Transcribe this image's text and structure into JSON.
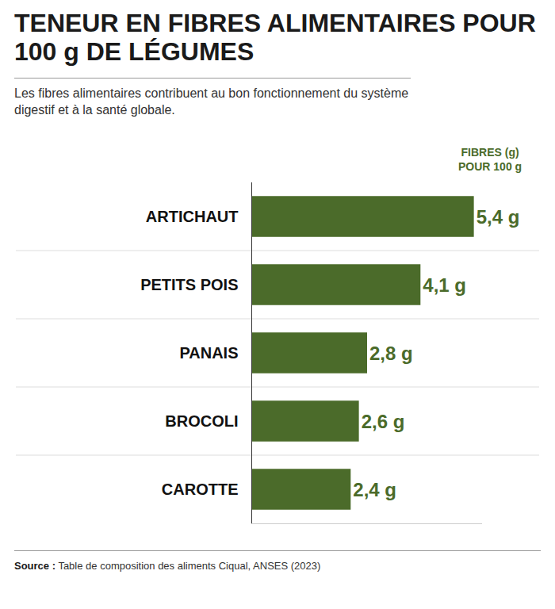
{
  "chart_data": {
    "type": "bar",
    "title": "TENEUR EN FIBRES ALIMENTAIRES POUR 100 g DE LÉGUMES",
    "subtitle": "Les fibres alimentaires contribuent au bon fonctionnement du système digestif et à la santé globale.",
    "xlabel": "FIBRES (g) POUR 100 g",
    "categories": [
      "ARTICHAUT",
      "PETITS POIS",
      "PANAIS",
      "BROCOLI",
      "CAROTTE"
    ],
    "values": [
      5.4,
      4.1,
      2.8,
      2.6,
      2.4
    ],
    "value_labels": [
      "5,4 g",
      "4,1 g",
      "2,8 g",
      "2,6 g",
      "2,4 g"
    ],
    "color": "#4b6b2a",
    "xlim": [
      0,
      5.6
    ],
    "xticks": [],
    "orientation": "horizontal",
    "data_labels": true,
    "tick_labels": "y",
    "grid": false,
    "source": {
      "label": "Source :",
      "text": "Table de composition des aliments Ciqual, ANSES (2023)"
    }
  }
}
